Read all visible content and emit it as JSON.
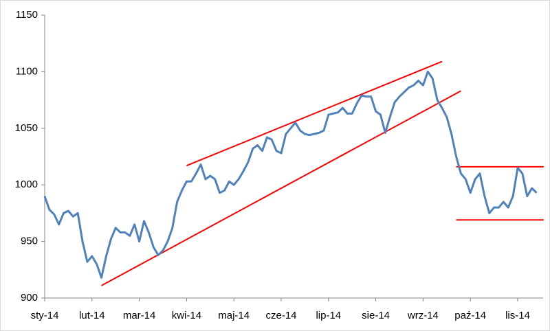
{
  "chart_data": {
    "type": "line",
    "categories": [
      "sty-14",
      null,
      null,
      null,
      null,
      null,
      null,
      null,
      null,
      null,
      "lut-14",
      null,
      null,
      null,
      null,
      null,
      null,
      null,
      null,
      null,
      "mar-14",
      null,
      null,
      null,
      null,
      null,
      null,
      null,
      null,
      null,
      "kwi-14",
      null,
      null,
      null,
      null,
      null,
      null,
      null,
      null,
      null,
      "maj-14",
      null,
      null,
      null,
      null,
      null,
      null,
      null,
      null,
      null,
      "cze-14",
      null,
      null,
      null,
      null,
      null,
      null,
      null,
      null,
      null,
      "lip-14",
      null,
      null,
      null,
      null,
      null,
      null,
      null,
      null,
      null,
      "sie-14",
      null,
      null,
      null,
      null,
      null,
      null,
      null,
      null,
      null,
      "wrz-14",
      null,
      null,
      null,
      null,
      null,
      null,
      null,
      null,
      null,
      "paź-14",
      null,
      null,
      null,
      null,
      null,
      null,
      null,
      null,
      null,
      "lis-14",
      null,
      null,
      null,
      null
    ],
    "series": [
      {
        "color": "#4f81bd",
        "values": [
          990,
          978,
          974,
          965,
          975,
          977,
          972,
          975,
          950,
          932,
          937,
          930,
          918,
          937,
          952,
          962,
          958,
          958,
          955,
          965,
          950,
          968,
          958,
          945,
          938,
          942,
          950,
          962,
          985,
          995,
          1003,
          1003,
          1010,
          1018,
          1005,
          1008,
          1005,
          993,
          995,
          1003,
          1000,
          1005,
          1012,
          1020,
          1032,
          1035,
          1030,
          1042,
          1040,
          1030,
          1028,
          1045,
          1050,
          1055,
          1048,
          1045,
          1044,
          1045,
          1046,
          1048,
          1062,
          1063,
          1064,
          1068,
          1063,
          1063,
          1072,
          1079,
          1078,
          1078,
          1065,
          1062,
          1046,
          1060,
          1073,
          1078,
          1082,
          1086,
          1088,
          1092,
          1088,
          1100,
          1094,
          1075,
          1068,
          1060,
          1045,
          1025,
          1010,
          1005,
          993,
          1005,
          1010,
          990,
          975,
          980,
          980,
          985,
          980,
          990,
          1015,
          1010,
          990,
          997,
          993
        ]
      }
    ],
    "trend_lines": [
      {
        "color": "#ff0000",
        "x": [
          12,
          88
        ],
        "y": [
          911,
          1083
        ]
      },
      {
        "color": "#ff0000",
        "x": [
          30,
          84
        ],
        "y": [
          1017,
          1109
        ]
      },
      {
        "color": "#ff0000",
        "x": [
          87,
          105.5
        ],
        "y": [
          1016,
          1016
        ]
      },
      {
        "color": "#ff0000",
        "x": [
          87,
          105.5
        ],
        "y": [
          969,
          969
        ]
      }
    ],
    "ylim": [
      900,
      1150
    ],
    "yticks": [
      900,
      950,
      1000,
      1050,
      1100,
      1150
    ],
    "grid": false
  }
}
